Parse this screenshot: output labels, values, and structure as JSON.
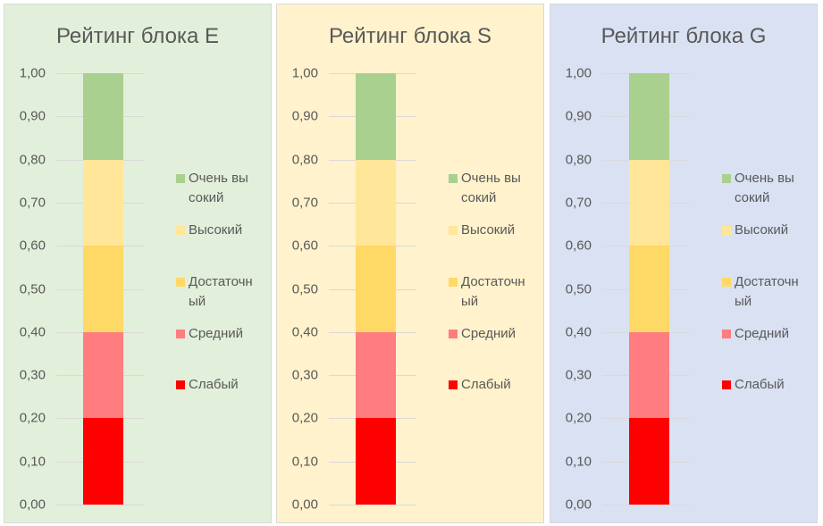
{
  "chart_data": [
    {
      "type": "bar",
      "stacked": true,
      "title": "Рейтинг блока E",
      "background": "#E2EFDA",
      "ylim": [
        0,
        1
      ],
      "yticks": [
        "0,00",
        "0,10",
        "0,20",
        "0,30",
        "0,40",
        "0,50",
        "0,60",
        "0,70",
        "0,80",
        "0,90",
        "1,00"
      ],
      "grid": true,
      "legend_position": "right",
      "series": [
        {
          "name": "Слабый",
          "value": 0.2,
          "color": "#FF0000"
        },
        {
          "name": "Средний",
          "value": 0.2,
          "color": "#FF7C80"
        },
        {
          "name": "Достаточный",
          "value": 0.2,
          "color": "#FFD966"
        },
        {
          "name": "Высокий",
          "value": 0.2,
          "color": "#FFE699"
        },
        {
          "name": "Очень высокий",
          "value": 0.2,
          "color": "#A9D08E"
        }
      ]
    },
    {
      "type": "bar",
      "stacked": true,
      "title": "Рейтинг блока S",
      "background": "#FFF2CC",
      "ylim": [
        0,
        1
      ],
      "yticks": [
        "0,00",
        "0,10",
        "0,20",
        "0,30",
        "0,40",
        "0,50",
        "0,60",
        "0,70",
        "0,80",
        "0,90",
        "1,00"
      ],
      "grid": true,
      "legend_position": "right",
      "series": [
        {
          "name": "Слабый",
          "value": 0.2,
          "color": "#FF0000"
        },
        {
          "name": "Средний",
          "value": 0.2,
          "color": "#FF7C80"
        },
        {
          "name": "Достаточный",
          "value": 0.2,
          "color": "#FFD966"
        },
        {
          "name": "Высокий",
          "value": 0.2,
          "color": "#FFE699"
        },
        {
          "name": "Очень высокий",
          "value": 0.2,
          "color": "#A9D08E"
        }
      ]
    },
    {
      "type": "bar",
      "stacked": true,
      "title": "Рейтинг блока G",
      "background": "#D9E1F2",
      "ylim": [
        0,
        1
      ],
      "yticks": [
        "0,00",
        "0,10",
        "0,20",
        "0,30",
        "0,40",
        "0,50",
        "0,60",
        "0,70",
        "0,80",
        "0,90",
        "1,00"
      ],
      "grid": true,
      "legend_position": "right",
      "series": [
        {
          "name": "Слабый",
          "value": 0.2,
          "color": "#FF0000"
        },
        {
          "name": "Средний",
          "value": 0.2,
          "color": "#FF7C80"
        },
        {
          "name": "Достаточный",
          "value": 0.2,
          "color": "#FFD966"
        },
        {
          "name": "Высокий",
          "value": 0.2,
          "color": "#FFE699"
        },
        {
          "name": "Очень высокий",
          "value": 0.2,
          "color": "#A9D08E"
        }
      ]
    }
  ]
}
